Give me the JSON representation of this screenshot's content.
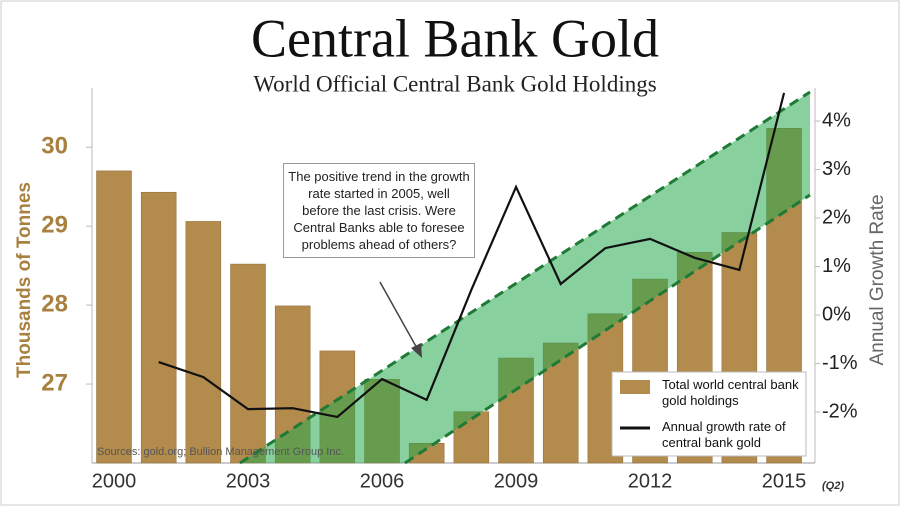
{
  "chart_data": {
    "type": "bar",
    "title": "Central Bank Gold",
    "subtitle": "World Official Central Bank Gold Holdings",
    "categories": [
      "2000",
      null,
      null,
      "2003",
      null,
      null,
      "2006",
      null,
      null,
      "2009",
      null,
      null,
      "2012",
      null,
      null,
      "2015"
    ],
    "x_note": "(Q2)",
    "series": [
      {
        "name": "Total world central bank gold holdings",
        "color": "#b38b4d",
        "values": [
          29.7,
          29.43,
          29.06,
          28.52,
          27.99,
          27.42,
          27.06,
          26.25,
          26.65,
          27.33,
          27.52,
          27.89,
          28.33,
          28.67,
          28.92,
          30.24
        ]
      },
      {
        "name": "Annual growth rate of central bank gold",
        "color": "#111111",
        "type": "line",
        "axis": "y2",
        "values": [
          null,
          -0.97,
          -1.28,
          -1.94,
          -1.92,
          -2.1,
          -1.32,
          -1.75,
          0.52,
          2.64,
          0.64,
          1.38,
          1.57,
          1.18,
          0.93,
          4.58
        ]
      }
    ],
    "ylabel": "Thousands of Tonnes",
    "y2label": "Annual Growth Rate",
    "ylim": [
      26,
      30.75
    ],
    "yticks": [
      27,
      28,
      29,
      30
    ],
    "y2lim": [
      -3.05,
      4.68
    ],
    "y2ticks": [
      {
        "value": -2,
        "label": "-2%"
      },
      {
        "value": -1,
        "label": "-1%"
      },
      {
        "value": 0,
        "label": "0%"
      },
      {
        "value": 1,
        "label": "1%"
      },
      {
        "value": 2,
        "label": "2%"
      },
      {
        "value": 3,
        "label": "3%"
      },
      {
        "value": 4,
        "label": "4%"
      }
    ],
    "annotation": "The positive trend in the growth rate started in 2005, well before the last crisis. Were Central Banks able to foresee problems ahead of others?",
    "source": "Sources: gold.org; Bullion Management Group Inc.",
    "legend": "bottom-right"
  }
}
